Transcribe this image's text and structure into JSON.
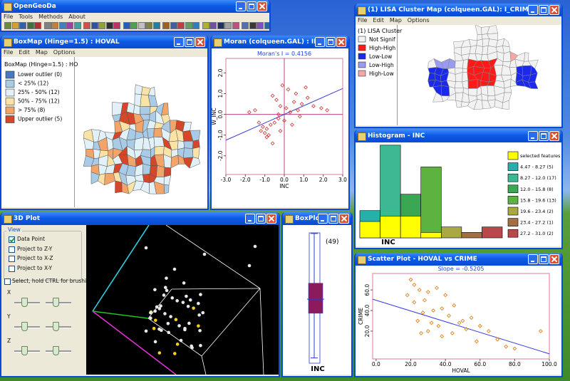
{
  "main_window": {
    "title": "OpenGeoDa",
    "menu": [
      "File",
      "Tools",
      "Methods",
      "About"
    ]
  },
  "boxmap": {
    "title": "BoxMap (Hinge=1.5) : HOVAL",
    "menu": [
      "File",
      "Edit",
      "Map",
      "Options"
    ],
    "legend_title": "BoxMap (Hinge=1.5) : HO",
    "legend": [
      {
        "label": "Lower outlier (0)",
        "color": "#4a78c0"
      },
      {
        "label": "< 25% (12)",
        "color": "#a9cbe6"
      },
      {
        "label": "25% - 50% (12)",
        "color": "#e2f1f8"
      },
      {
        "label": "50% - 75% (12)",
        "color": "#fbe3a6"
      },
      {
        "label": "> 75% (8)",
        "color": "#f3a469"
      },
      {
        "label": "Upper outlier (5)",
        "color": "#d4472a"
      }
    ]
  },
  "moran": {
    "title": "Moran (colqueen.GAL) : INC",
    "chart": {
      "type": "scatter",
      "subtitle": "Moran's I = 0.4156",
      "xlabel": "INC",
      "ylabel": "W_INC",
      "x": [
        -1.2,
        -1.0,
        -0.9,
        -1.1,
        -0.8,
        -0.7,
        -0.5,
        -0.3,
        -0.2,
        0.1,
        0.3,
        0.5,
        0.7,
        0.9,
        1.2,
        1.5,
        -0.4,
        -0.6,
        0.2,
        -0.1,
        1.1,
        -1.5,
        -1.8,
        0.0,
        0.4,
        -0.2,
        -0.9,
        -0.6,
        0.8,
        1.9,
        -1.3,
        -0.3,
        0.6,
        2.2
      ],
      "y": [
        -0.8,
        -0.9,
        -0.7,
        -0.6,
        -1.0,
        -0.5,
        -0.4,
        -0.2,
        0.4,
        0.3,
        0.1,
        0.6,
        0.2,
        0.5,
        0.8,
        0.4,
        0.7,
        0.9,
        1.2,
        1.4,
        1.3,
        0.2,
        0.1,
        -0.3,
        -0.5,
        -0.8,
        -1.1,
        -1.4,
        -0.1,
        0.3,
        -0.4,
        0.0,
        1.0,
        0.2
      ],
      "color": "#d04848",
      "xlim": [
        -3,
        3
      ],
      "ylim": [
        -2.9,
        2.7
      ],
      "xticks": [
        {
          "value": -3,
          "label": "-3.0"
        },
        {
          "value": -2,
          "label": "-2.0"
        },
        {
          "value": -1,
          "label": "-1.0"
        },
        {
          "value": 0,
          "label": "0.0"
        },
        {
          "value": 1,
          "label": "1.0"
        },
        {
          "value": 2,
          "label": "2.0"
        },
        {
          "value": 3,
          "label": "3.0"
        }
      ],
      "yticks": [
        {
          "value": -2,
          "label": "-2.0"
        },
        {
          "value": -1,
          "label": "-1.0"
        },
        {
          "value": 0,
          "label": "0.0"
        },
        {
          "value": 1,
          "label": "1.0"
        },
        {
          "value": 2,
          "label": "2.0"
        }
      ],
      "zero_lines": true,
      "fit": {
        "slope": 0.4156,
        "intercept": 0
      },
      "fit_color": "#3a3ae0"
    }
  },
  "lisa": {
    "title": "(1) LISA Cluster Map (colqueen.GAL): I_CRIME",
    "menu": [
      "File",
      "Edit",
      "Map",
      "Options"
    ],
    "legend_title": "(1) LISA Cluster",
    "legend": [
      {
        "label": "Not Signif",
        "color": "#f2f2f2"
      },
      {
        "label": "High-High",
        "color": "#ff1a1a"
      },
      {
        "label": "Low-Low",
        "color": "#1a2ae8"
      },
      {
        "label": "Low-High",
        "color": "#9a9aee"
      },
      {
        "label": "High-Low",
        "color": "#f3a6a6"
      }
    ]
  },
  "histogram": {
    "title": "Histogram - INC",
    "chart": {
      "type": "bar",
      "xlabel": "INC",
      "categories": [
        "4.47 - 8.27 (5)",
        "8.27 - 12.0 (17)",
        "12.0 - 15.8 (8)",
        "15.8 - 19.6 (13)",
        "19.6 - 23.4 (2)",
        "23.4 - 27.2 (1)",
        "27.2 - 31.0 (2)"
      ],
      "values": [
        5,
        17,
        8,
        13,
        2,
        1,
        2
      ],
      "colors": [
        "#26b0ac",
        "#3cb892",
        "#3aa852",
        "#5eb340",
        "#aaa842",
        "#a26e42",
        "#b9484a"
      ],
      "series": [
        {
          "name": "selected features",
          "color": "#ffff00",
          "values": [
            3,
            4,
            4,
            1,
            0,
            0,
            0
          ]
        }
      ],
      "ylim": [
        0,
        17.5
      ]
    }
  },
  "plot3d": {
    "title": "3D Plot",
    "view_label": "View",
    "options": [
      {
        "label": "Data Point",
        "checked": true
      },
      {
        "label": "Project to Z-Y",
        "checked": false
      },
      {
        "label": "Project to X-Z",
        "checked": false
      },
      {
        "label": "Project to X-Y",
        "checked": false
      }
    ],
    "brush": {
      "label": "Select, hold CTRL for brushing",
      "checked": false
    },
    "axes": [
      "X",
      "Y",
      "Z"
    ]
  },
  "boxplot": {
    "title": "BoxPlot (...",
    "chart": {
      "type": "box",
      "n_label": "(49)",
      "xlabel": "INC",
      "ylim": [
        3.2,
        32.2
      ],
      "whisker_low": 4.47,
      "q1": 14.0,
      "median": 17.0,
      "q3": 20.4,
      "whisker_high": 31.0,
      "color": "#8e1a5e"
    }
  },
  "scatter": {
    "title": "Scatter Plot - HOVAL vs CRIME",
    "chart": {
      "type": "scatter",
      "subtitle": "Slope = -0.5205",
      "xlabel": "HOVAL",
      "ylabel": "CRIME",
      "x": [
        20,
        22,
        25,
        18,
        30,
        35,
        28,
        22,
        40,
        45,
        38,
        33,
        27,
        42,
        50,
        55,
        48,
        36,
        30,
        26,
        60,
        65,
        52,
        44,
        38,
        70,
        75,
        80,
        95,
        58,
        24,
        32
      ],
      "y": [
        70,
        65,
        60,
        55,
        58,
        62,
        50,
        48,
        55,
        45,
        42,
        40,
        38,
        35,
        30,
        33,
        28,
        25,
        20,
        18,
        25,
        20,
        22,
        18,
        15,
        12,
        5,
        3,
        20,
        10,
        30,
        28
      ],
      "color": "#e0801c",
      "xlim": [
        -2,
        100
      ],
      "ylim": [
        -7,
        76
      ],
      "xticks": [
        {
          "value": 0,
          "label": "0.0"
        },
        {
          "value": 20,
          "label": "20.0"
        },
        {
          "value": 40,
          "label": "40.0"
        },
        {
          "value": 60,
          "label": "60.0"
        },
        {
          "value": 80,
          "label": "80.0"
        },
        {
          "value": 100,
          "label": "100.0"
        }
      ],
      "yticks": [
        {
          "value": 20,
          "label": "20.0"
        },
        {
          "value": 40,
          "label": "40.0"
        },
        {
          "value": 60,
          "label": "60.0"
        }
      ],
      "zero_lines": false,
      "fit": {
        "slope": -0.5205,
        "intercept": 50
      },
      "fit_color": "#3a3ae0"
    }
  }
}
